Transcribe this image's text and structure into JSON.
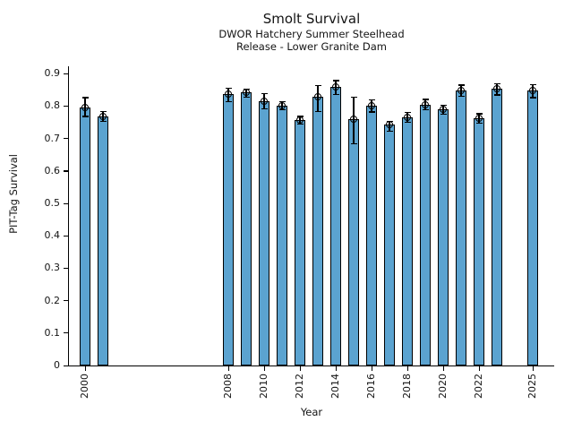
{
  "figure": {
    "title": "Smolt Survival",
    "subtitle1": "DWOR Hatchery Summer Steelhead",
    "subtitle2": "Release - Lower Granite Dam"
  },
  "chart_data": {
    "type": "bar",
    "title": "Smolt Survival",
    "subtitle": [
      "DWOR Hatchery Summer Steelhead",
      "Release - Lower Granite Dam"
    ],
    "xlabel": "Year",
    "ylabel": "PIT-Tag Survival",
    "ylim": [
      0,
      0.9
    ],
    "grid": false,
    "legend": "none",
    "bar_color": "#5BA3D0",
    "bar_edge_color": "#000000",
    "error_bar_color": "#000000",
    "marker": "open-circle",
    "categories": [
      2000,
      2001,
      2008,
      2009,
      2010,
      2011,
      2012,
      2013,
      2014,
      2015,
      2016,
      2017,
      2018,
      2019,
      2020,
      2021,
      2022,
      2023,
      2025
    ],
    "values": [
      0.795,
      0.768,
      0.837,
      0.842,
      0.816,
      0.802,
      0.756,
      0.828,
      0.858,
      0.759,
      0.802,
      0.742,
      0.765,
      0.805,
      0.789,
      0.848,
      0.762,
      0.854,
      0.848
    ],
    "error_low": [
      0.768,
      0.753,
      0.813,
      0.828,
      0.791,
      0.789,
      0.745,
      0.784,
      0.836,
      0.685,
      0.782,
      0.722,
      0.75,
      0.789,
      0.776,
      0.83,
      0.747,
      0.835,
      0.826
    ],
    "error_high": [
      0.826,
      0.784,
      0.856,
      0.853,
      0.839,
      0.814,
      0.768,
      0.863,
      0.879,
      0.828,
      0.819,
      0.754,
      0.78,
      0.821,
      0.802,
      0.865,
      0.777,
      0.869,
      0.867
    ],
    "x_axis_tick_years": [
      2000,
      2008,
      2010,
      2012,
      2014,
      2016,
      2018,
      2020,
      2022,
      2025
    ],
    "y_axis_ticks": [
      0,
      0.1,
      0.2,
      0.3,
      0.4,
      0.5,
      0.6,
      0.7,
      0.8,
      0.9
    ]
  }
}
